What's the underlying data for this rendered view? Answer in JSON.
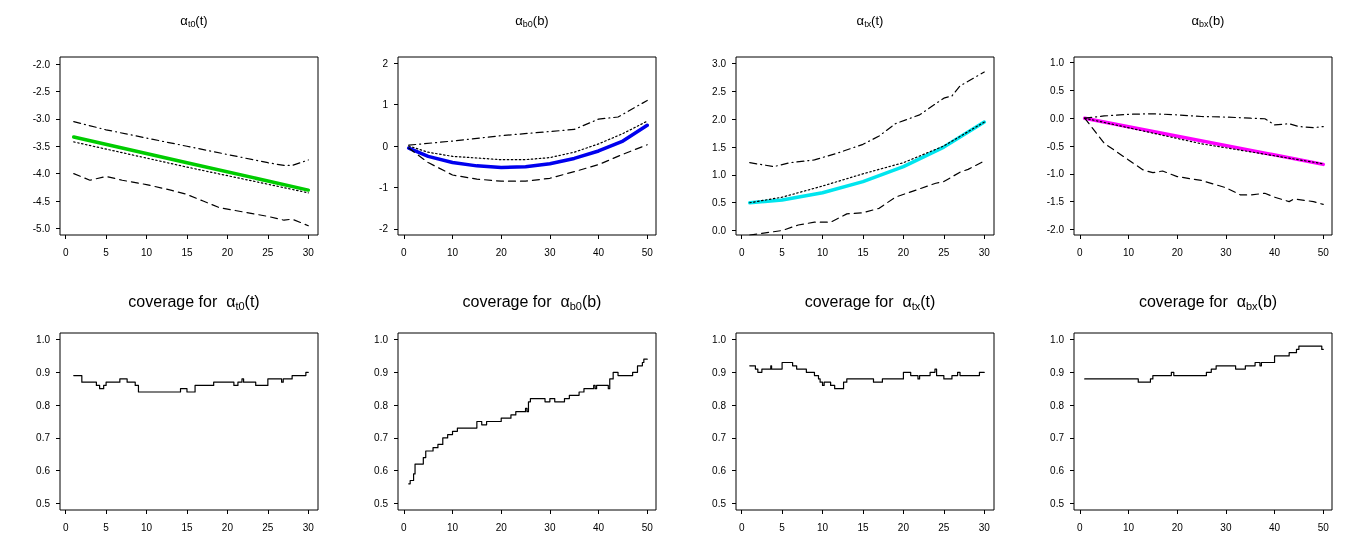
{
  "chart_data": [
    {
      "type": "line",
      "title": "α$_{t0}$(t)",
      "marker": "none",
      "grid": false,
      "xlim": [
        -0.7,
        31.2
      ],
      "xticks": [
        0,
        5,
        10,
        15,
        20,
        25,
        30
      ],
      "ylim": [
        -5.12,
        -1.87
      ],
      "yticks": [
        {
          "value": -2,
          "label": "-2.0"
        },
        -2.5,
        {
          "value": -3,
          "label": "-3.0"
        },
        -3.5,
        {
          "value": -4,
          "label": "-4.0"
        },
        -4.5,
        {
          "value": -5,
          "label": "-5.0"
        }
      ],
      "series": [
        {
          "color": "#000000",
          "line_style": "dashdot",
          "x": [
            1,
            5,
            10,
            15,
            20,
            25,
            27,
            28,
            30
          ],
          "values": [
            -3.05,
            -3.2,
            -3.35,
            -3.5,
            -3.65,
            -3.8,
            -3.85,
            -3.85,
            -3.75
          ]
        },
        {
          "color": "#000000",
          "line_style": "dashed",
          "x": [
            1,
            3,
            5,
            7,
            10,
            13,
            15,
            17,
            19,
            22,
            25,
            27,
            28,
            30
          ],
          "values": [
            -4.0,
            -4.12,
            -4.05,
            -4.12,
            -4.2,
            -4.3,
            -4.38,
            -4.5,
            -4.62,
            -4.7,
            -4.78,
            -4.85,
            -4.83,
            -4.95
          ]
        },
        {
          "color": "#000000",
          "line_style": "dotted",
          "x": [
            1,
            15,
            30
          ],
          "values": [
            -3.42,
            -3.88,
            -4.35
          ]
        },
        {
          "color": "#00cc00",
          "line_style": "solid",
          "x": [
            1,
            15,
            30
          ],
          "values": [
            -3.33,
            -3.8,
            -4.3
          ]
        }
      ]
    },
    {
      "type": "line",
      "title": "α$_{b0}$(b)",
      "marker": "none",
      "grid": false,
      "xlim": [
        -1.2,
        51.8
      ],
      "xticks": [
        0,
        10,
        20,
        30,
        40,
        50
      ],
      "ylim": [
        -2.15,
        2.15
      ],
      "yticks": [
        -2,
        -1,
        0,
        1,
        2
      ],
      "series": [
        {
          "color": "#000000",
          "line_style": "dashdot",
          "x": [
            1,
            10,
            20,
            30,
            35,
            40,
            44,
            50
          ],
          "values": [
            0.02,
            0.12,
            0.25,
            0.35,
            0.4,
            0.65,
            0.7,
            1.1
          ]
        },
        {
          "color": "#000000",
          "line_style": "dashed",
          "x": [
            1,
            5,
            10,
            15,
            20,
            25,
            30,
            35,
            40,
            45,
            50
          ],
          "values": [
            -0.05,
            -0.4,
            -0.7,
            -0.8,
            -0.85,
            -0.85,
            -0.78,
            -0.62,
            -0.45,
            -0.2,
            0.03
          ]
        },
        {
          "color": "#000000",
          "line_style": "dotted",
          "x": [
            1,
            5,
            10,
            20,
            25,
            30,
            35,
            40,
            45,
            50
          ],
          "values": [
            0,
            -0.15,
            -0.25,
            -0.33,
            -0.33,
            -0.28,
            -0.15,
            0.05,
            0.3,
            0.6
          ]
        },
        {
          "color": "#0000ee",
          "line_style": "solid",
          "x": [
            1,
            5,
            10,
            15,
            20,
            25,
            30,
            35,
            40,
            45,
            50
          ],
          "values": [
            -0.05,
            -0.25,
            -0.4,
            -0.48,
            -0.52,
            -0.5,
            -0.43,
            -0.3,
            -0.12,
            0.12,
            0.5
          ]
        }
      ]
    },
    {
      "type": "line",
      "title": "α$_{tx}$(t)",
      "marker": "none",
      "grid": false,
      "xlim": [
        -0.7,
        31.2
      ],
      "xticks": [
        0,
        5,
        10,
        15,
        20,
        25,
        30
      ],
      "ylim": [
        -0.08,
        3.12
      ],
      "yticks": [
        {
          "value": 0,
          "label": "0.0"
        },
        0.5,
        {
          "value": 1,
          "label": "1.0"
        },
        1.5,
        {
          "value": 2,
          "label": "2.0"
        },
        2.5,
        {
          "value": 3,
          "label": "3.0"
        }
      ],
      "series": [
        {
          "color": "#000000",
          "line_style": "dashdot",
          "x": [
            1,
            4,
            6,
            9,
            12,
            15,
            17,
            19,
            22,
            25,
            26,
            27,
            30
          ],
          "values": [
            1.22,
            1.15,
            1.22,
            1.27,
            1.4,
            1.55,
            1.7,
            1.92,
            2.08,
            2.38,
            2.42,
            2.6,
            2.85
          ]
        },
        {
          "color": "#000000",
          "line_style": "dashed",
          "x": [
            1,
            5,
            7,
            9,
            11,
            13,
            15,
            17,
            19,
            22,
            24,
            25,
            27,
            28,
            30
          ],
          "values": [
            -0.08,
            0.0,
            0.1,
            0.15,
            0.15,
            0.3,
            0.32,
            0.4,
            0.6,
            0.75,
            0.85,
            0.88,
            1.05,
            1.1,
            1.25
          ]
        },
        {
          "color": "#000000",
          "line_style": "dotted",
          "x": [
            1,
            5,
            10,
            15,
            20,
            25,
            30
          ],
          "values": [
            0.5,
            0.6,
            0.8,
            1.02,
            1.22,
            1.52,
            1.95
          ]
        },
        {
          "color": "#00e5ee",
          "line_style": "solid",
          "x": [
            1,
            5,
            10,
            15,
            20,
            25,
            30
          ],
          "values": [
            0.5,
            0.55,
            0.68,
            0.88,
            1.15,
            1.5,
            1.95
          ]
        }
      ]
    },
    {
      "type": "line",
      "title": "α$_{bx}$(b)",
      "marker": "none",
      "grid": false,
      "xlim": [
        -1.2,
        51.8
      ],
      "xticks": [
        0,
        10,
        20,
        30,
        40,
        50
      ],
      "ylim": [
        -2.1,
        1.1
      ],
      "yticks": [
        {
          "value": -2,
          "label": "-2.0"
        },
        -1.5,
        {
          "value": -1,
          "label": "-1.0"
        },
        -0.5,
        {
          "value": 0,
          "label": "0.0"
        },
        0.5,
        {
          "value": 1,
          "label": "1.0"
        }
      ],
      "series": [
        {
          "color": "#000000",
          "line_style": "dashdot",
          "x": [
            1,
            5,
            10,
            15,
            20,
            25,
            30,
            35,
            38,
            40,
            43,
            45,
            48,
            50
          ],
          "values": [
            0,
            0.04,
            0.07,
            0.08,
            0.06,
            0.03,
            0.02,
            0.0,
            -0.01,
            -0.12,
            -0.1,
            -0.15,
            -0.17,
            -0.15
          ]
        },
        {
          "color": "#000000",
          "line_style": "dashed",
          "x": [
            1,
            5,
            10,
            13,
            15,
            17,
            20,
            25,
            30,
            33,
            35,
            38,
            40,
            43,
            44,
            48,
            50
          ],
          "values": [
            0,
            -0.45,
            -0.75,
            -0.93,
            -0.98,
            -0.95,
            -1.05,
            -1.12,
            -1.25,
            -1.38,
            -1.38,
            -1.35,
            -1.42,
            -1.5,
            -1.45,
            -1.5,
            -1.55
          ]
        },
        {
          "color": "#000000",
          "line_style": "dotted",
          "x": [
            1,
            25,
            50
          ],
          "values": [
            0,
            -0.46,
            -0.82
          ]
        },
        {
          "color": "#ff00ff",
          "line_style": "solid",
          "x": [
            1,
            50
          ],
          "values": [
            0,
            -0.83
          ]
        }
      ]
    },
    {
      "type": "step",
      "title": "coverage for  α$_{t0}$(t)",
      "marker": "none",
      "grid": false,
      "xlim": [
        -0.7,
        31.2
      ],
      "xticks": [
        0,
        5,
        10,
        15,
        20,
        25,
        30
      ],
      "ylim": [
        0.48,
        1.02
      ],
      "yticks": [
        0.5,
        0.6,
        0.7,
        0.8,
        0.9,
        {
          "value": 1,
          "label": "1.0"
        }
      ],
      "series": [
        {
          "color": "#000000",
          "x": [
            1,
            2,
            3.8,
            4.2,
            4.7,
            5,
            6.7,
            7.6,
            8.6,
            9,
            14.2,
            15,
            16,
            18.3,
            20.8,
            21.3,
            21.8,
            22,
            23.5,
            25,
            26.7,
            26.9,
            28,
            29.7,
            30
          ],
          "values": [
            0.89,
            0.87,
            0.86,
            0.85,
            0.86,
            0.87,
            0.88,
            0.87,
            0.86,
            0.84,
            0.85,
            0.84,
            0.86,
            0.87,
            0.86,
            0.87,
            0.88,
            0.87,
            0.86,
            0.88,
            0.87,
            0.88,
            0.89,
            0.9,
            0.9
          ]
        }
      ]
    },
    {
      "type": "step",
      "title": "coverage for  α$_{b0}$(b)",
      "marker": "none",
      "grid": false,
      "xlim": [
        -1.2,
        51.8
      ],
      "xticks": [
        0,
        10,
        20,
        30,
        40,
        50
      ],
      "ylim": [
        0.48,
        1.02
      ],
      "yticks": [
        0.5,
        0.6,
        0.7,
        0.8,
        0.9,
        {
          "value": 1,
          "label": "1.0"
        }
      ],
      "series": [
        {
          "color": "#000000",
          "x": [
            1,
            1.3,
            2,
            2.3,
            4,
            4.5,
            6,
            7,
            8,
            9,
            10,
            11,
            15,
            16,
            17,
            20,
            22,
            23,
            25,
            25.3,
            25.6,
            26,
            29,
            30,
            31,
            33,
            34,
            36,
            37,
            39,
            39.3,
            39.6,
            42,
            42.3,
            43,
            44,
            47,
            48,
            49,
            49.3,
            50
          ],
          "values": [
            0.56,
            0.57,
            0.59,
            0.62,
            0.64,
            0.66,
            0.67,
            0.68,
            0.7,
            0.71,
            0.72,
            0.73,
            0.75,
            0.74,
            0.75,
            0.76,
            0.77,
            0.78,
            0.79,
            0.78,
            0.81,
            0.82,
            0.81,
            0.82,
            0.81,
            0.82,
            0.83,
            0.84,
            0.85,
            0.86,
            0.85,
            0.86,
            0.85,
            0.88,
            0.9,
            0.89,
            0.9,
            0.92,
            0.93,
            0.94,
            0.94
          ]
        }
      ]
    },
    {
      "type": "step",
      "title": "coverage for  α$_{tx}$(t)",
      "marker": "none",
      "grid": false,
      "xlim": [
        -0.7,
        31.2
      ],
      "xticks": [
        0,
        5,
        10,
        15,
        20,
        25,
        30
      ],
      "ylim": [
        0.48,
        1.02
      ],
      "yticks": [
        0.5,
        0.6,
        0.7,
        0.8,
        0.9,
        {
          "value": 1,
          "label": "1.0"
        }
      ],
      "series": [
        {
          "color": "#000000",
          "x": [
            1,
            1.7,
            2,
            2.5,
            3.6,
            3.7,
            5,
            6.3,
            6.8,
            8,
            9,
            9.5,
            9.7,
            10,
            10.2,
            11,
            11.5,
            12.6,
            13,
            16.3,
            17.4,
            20,
            20.9,
            21.8,
            22,
            23.3,
            23.9,
            24.1,
            25,
            26,
            26.7,
            27,
            29.4,
            30
          ],
          "values": [
            0.92,
            0.91,
            0.9,
            0.91,
            0.92,
            0.91,
            0.93,
            0.92,
            0.91,
            0.9,
            0.89,
            0.88,
            0.87,
            0.86,
            0.87,
            0.86,
            0.85,
            0.87,
            0.88,
            0.87,
            0.88,
            0.9,
            0.89,
            0.88,
            0.89,
            0.9,
            0.91,
            0.89,
            0.88,
            0.89,
            0.9,
            0.89,
            0.9,
            0.9
          ]
        }
      ]
    },
    {
      "type": "step",
      "title": "coverage for  α$_{bx}$(b)",
      "marker": "none",
      "grid": false,
      "xlim": [
        -1.2,
        51.8
      ],
      "xticks": [
        0,
        10,
        20,
        30,
        40,
        50
      ],
      "ylim": [
        0.48,
        1.02
      ],
      "yticks": [
        0.5,
        0.6,
        0.7,
        0.8,
        0.9,
        {
          "value": 1,
          "label": "1.0"
        }
      ],
      "series": [
        {
          "color": "#000000",
          "x": [
            1,
            12,
            14.5,
            15,
            18.8,
            19.3,
            26,
            27,
            28,
            32,
            34,
            36,
            37,
            37.3,
            40,
            43,
            44.5,
            45,
            49.7,
            50
          ],
          "values": [
            0.88,
            0.87,
            0.88,
            0.89,
            0.9,
            0.89,
            0.9,
            0.91,
            0.92,
            0.91,
            0.92,
            0.93,
            0.92,
            0.93,
            0.95,
            0.96,
            0.97,
            0.98,
            0.97,
            0.97
          ]
        }
      ]
    }
  ]
}
